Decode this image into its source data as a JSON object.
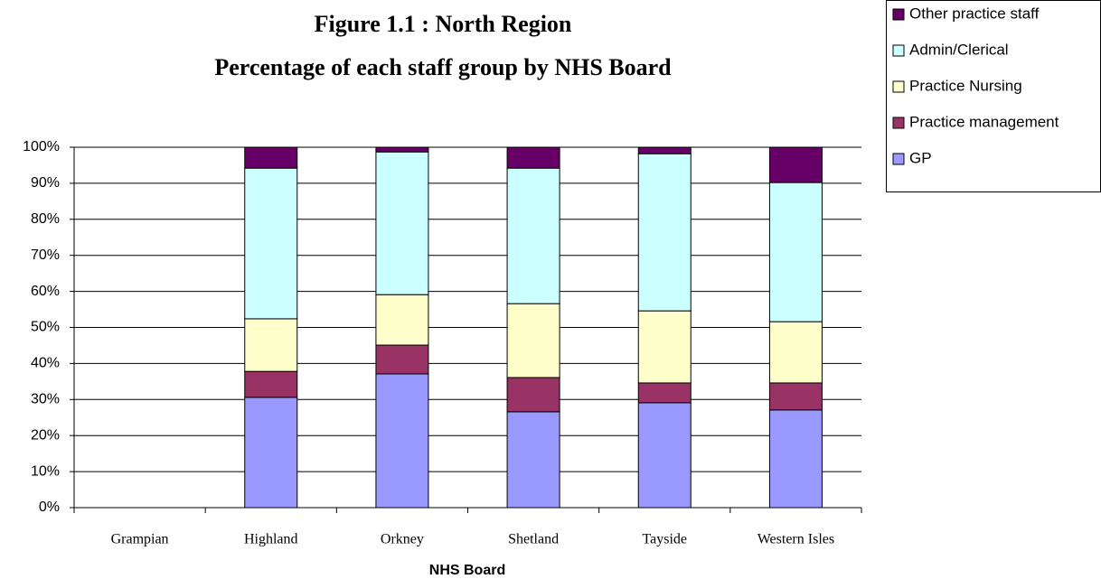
{
  "chart_data": {
    "type": "stacked_bar",
    "title": "Figure 1.1 : North Region",
    "subtitle": "Percentage of each staff group by NHS Board",
    "x_label": "NHS Board",
    "categories": [
      "Grampian",
      "Highland",
      "Orkney",
      "Shetland",
      "Tayside",
      "Western Isles"
    ],
    "series": [
      {
        "name": "GP",
        "color": "#9999ff",
        "values": [
          null,
          30.6,
          37.1,
          26.6,
          29.1,
          27.1
        ]
      },
      {
        "name": "Practice management",
        "color": "#993366",
        "values": [
          null,
          7.2,
          8.0,
          9.5,
          5.5,
          7.5
        ]
      },
      {
        "name": "Practice Nursing",
        "color": "#ffffcc",
        "values": [
          null,
          14.6,
          14.0,
          20.5,
          20.0,
          17.0
        ]
      },
      {
        "name": "Admin/Clerical",
        "color": "#ccffff",
        "values": [
          null,
          41.8,
          39.6,
          37.6,
          43.6,
          38.6
        ]
      },
      {
        "name": "Other practice staff",
        "color": "#660066",
        "values": [
          null,
          5.8,
          1.3,
          5.8,
          1.8,
          9.8
        ]
      }
    ],
    "ylim": [
      0,
      100
    ],
    "yticks": [
      {
        "value": 0,
        "label": "0%"
      },
      {
        "value": 10,
        "label": "10%"
      },
      {
        "value": 20,
        "label": "20%"
      },
      {
        "value": 30,
        "label": "30%"
      },
      {
        "value": 40,
        "label": "40%"
      },
      {
        "value": 50,
        "label": "50%"
      },
      {
        "value": 60,
        "label": "60%"
      },
      {
        "value": 70,
        "label": "70%"
      },
      {
        "value": 80,
        "label": "80%"
      },
      {
        "value": 90,
        "label": "90%"
      },
      {
        "value": 100,
        "label": "100%"
      }
    ],
    "grid": true,
    "legend": "top-right"
  }
}
